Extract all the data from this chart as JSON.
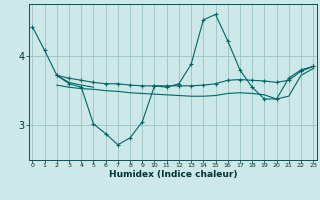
{
  "xlabel": "Humidex (Indice chaleur)",
  "background_color": "#cce8e8",
  "grid_color": "#99c4c4",
  "line_color": "#006666",
  "x_ticks": [
    0,
    1,
    2,
    3,
    4,
    5,
    6,
    7,
    8,
    9,
    10,
    11,
    12,
    13,
    14,
    15,
    16,
    17,
    18,
    19,
    20,
    21,
    22,
    23
  ],
  "y_ticks": [
    3,
    4
  ],
  "ylim": [
    2.5,
    4.75
  ],
  "xlim": [
    -0.3,
    23.3
  ],
  "series": [
    {
      "x": [
        0,
        1,
        2,
        3,
        4,
        5,
        6,
        7,
        8,
        9,
        10,
        11,
        12,
        13,
        14,
        15,
        16,
        17,
        18,
        19,
        20,
        21,
        22,
        23
      ],
      "y": [
        4.42,
        4.08,
        3.72,
        3.6,
        3.55,
        3.02,
        2.88,
        2.72,
        2.82,
        3.05,
        3.57,
        3.55,
        3.6,
        3.88,
        4.52,
        4.6,
        4.22,
        3.8,
        3.55,
        3.38,
        3.38,
        3.68,
        3.8,
        3.85
      ],
      "marker": true,
      "markersize": 3.5
    },
    {
      "x": [
        2,
        3,
        4,
        5,
        6,
        7,
        8,
        9,
        10,
        11,
        12,
        13,
        14,
        15,
        16,
        17,
        18,
        19,
        20,
        21,
        22,
        23
      ],
      "y": [
        3.72,
        3.68,
        3.65,
        3.62,
        3.6,
        3.6,
        3.58,
        3.57,
        3.57,
        3.57,
        3.57,
        3.57,
        3.58,
        3.6,
        3.65,
        3.66,
        3.65,
        3.64,
        3.62,
        3.65,
        3.78,
        3.85
      ],
      "marker": true,
      "markersize": 2.5
    },
    {
      "x": [
        2,
        3,
        4,
        5,
        6,
        7,
        8,
        9,
        10,
        11,
        12,
        13,
        14,
        15,
        16,
        17,
        18,
        19,
        20,
        21,
        22,
        23
      ],
      "y": [
        3.58,
        3.55,
        3.53,
        3.52,
        3.5,
        3.49,
        3.47,
        3.46,
        3.45,
        3.44,
        3.43,
        3.42,
        3.42,
        3.43,
        3.46,
        3.47,
        3.46,
        3.44,
        3.38,
        3.42,
        3.72,
        3.82
      ],
      "marker": false,
      "markersize": 0
    },
    {
      "x": [
        2,
        3,
        4,
        5
      ],
      "y": [
        3.72,
        3.62,
        3.58,
        3.55
      ],
      "marker": false,
      "markersize": 0
    }
  ]
}
